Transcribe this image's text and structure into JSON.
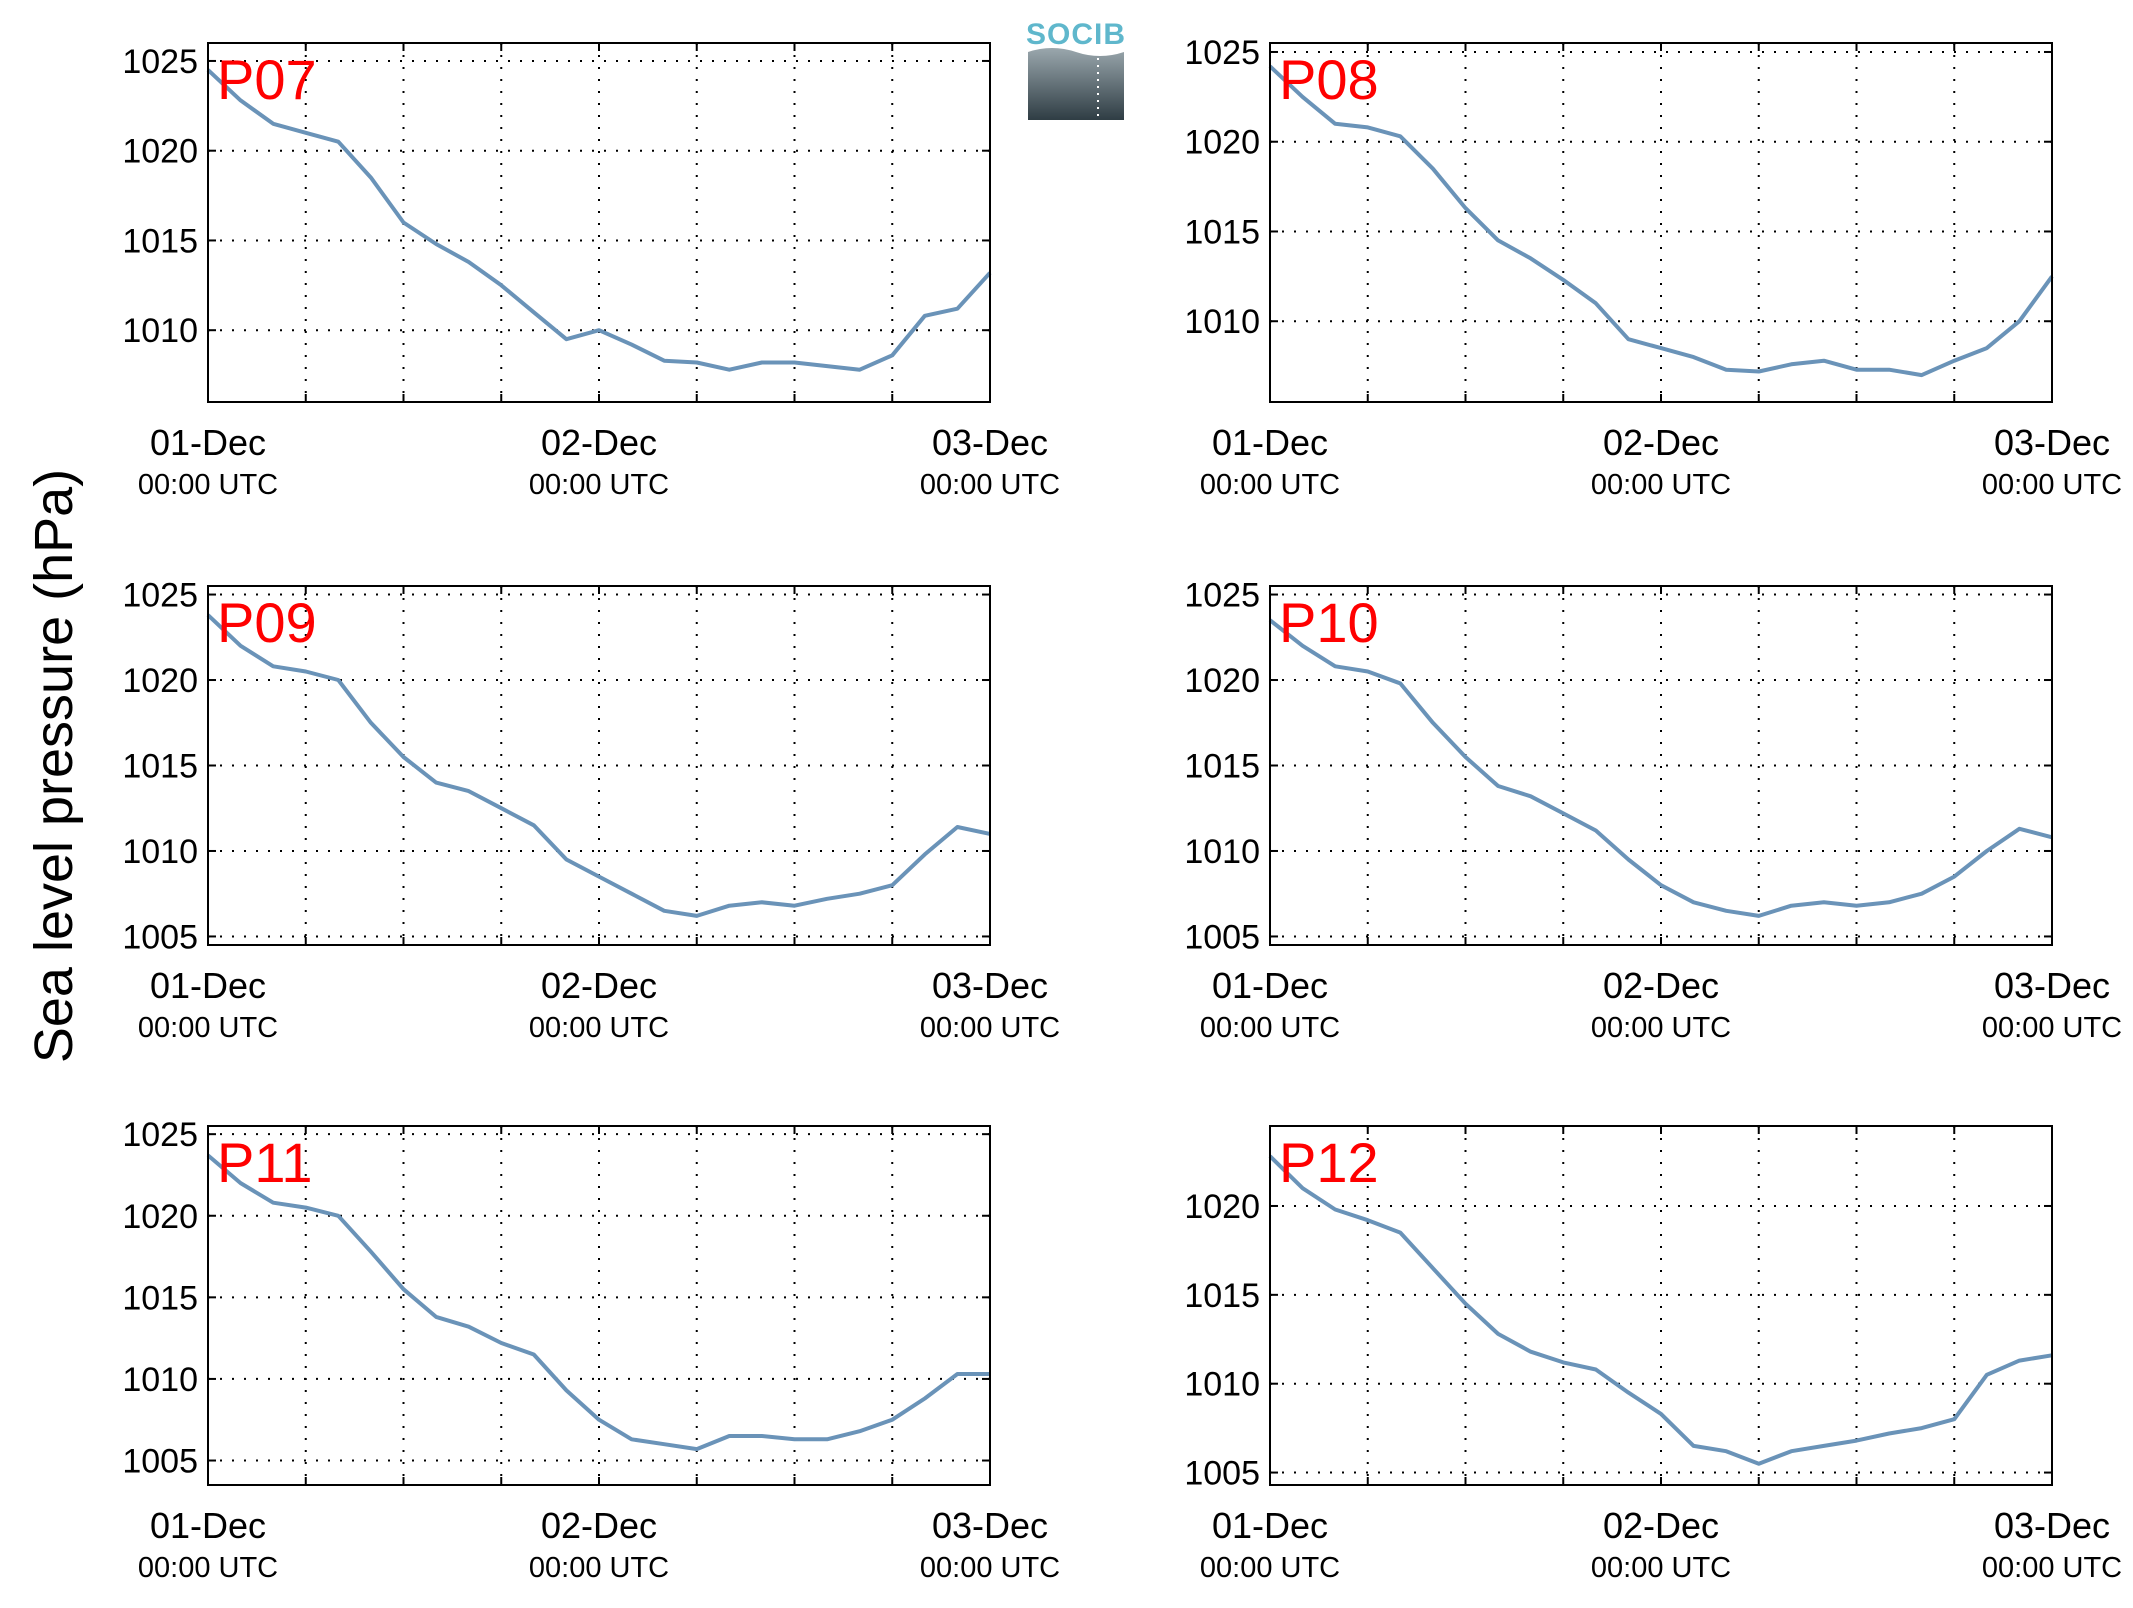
{
  "figure": {
    "ylabel": "Sea level pressure (hPa)",
    "logo_text": "SOCIB"
  },
  "colors": {
    "series_line": "#6a93b8",
    "station_label": "#ff0000",
    "logo_text": "#5fb7cc",
    "grid": "#000000"
  },
  "chart_data": [
    {
      "type": "line",
      "title": "P07",
      "grid": true,
      "xlim": [
        "2016-12-01 00:00",
        "2016-12-03 00:00"
      ],
      "ylim": [
        1006,
        1026
      ],
      "yticks": [
        1010,
        1015,
        1020,
        1025
      ],
      "xtick_labels": [
        {
          "date": "01-Dec",
          "time": "00:00 UTC"
        },
        {
          "date": "02-Dec",
          "time": "00:00 UTC"
        },
        {
          "date": "03-Dec",
          "time": "00:00 UTC"
        }
      ],
      "x_hours": [
        0,
        2,
        4,
        6,
        8,
        10,
        12,
        14,
        16,
        18,
        20,
        22,
        24,
        26,
        28,
        30,
        32,
        34,
        36,
        38,
        40,
        42,
        44,
        46,
        48
      ],
      "values": [
        1024.5,
        1022.8,
        1021.5,
        1021.0,
        1020.5,
        1018.5,
        1016.0,
        1014.8,
        1013.8,
        1012.5,
        1011.0,
        1009.5,
        1010.0,
        1009.2,
        1008.3,
        1008.2,
        1007.8,
        1008.2,
        1008.2,
        1008.0,
        1007.8,
        1008.6,
        1010.8,
        1011.2,
        1013.2
      ]
    },
    {
      "type": "line",
      "title": "P08",
      "grid": true,
      "xlim": [
        "2016-12-01 00:00",
        "2016-12-03 00:00"
      ],
      "ylim": [
        1005.5,
        1025.5
      ],
      "yticks": [
        1010,
        1015,
        1020,
        1025
      ],
      "xtick_labels": [
        {
          "date": "01-Dec",
          "time": "00:00 UTC"
        },
        {
          "date": "02-Dec",
          "time": "00:00 UTC"
        },
        {
          "date": "03-Dec",
          "time": "00:00 UTC"
        }
      ],
      "x_hours": [
        0,
        2,
        4,
        6,
        8,
        10,
        12,
        14,
        16,
        18,
        20,
        22,
        24,
        26,
        28,
        30,
        32,
        34,
        36,
        38,
        40,
        42,
        44,
        46,
        48
      ],
      "values": [
        1024.2,
        1022.5,
        1021.0,
        1020.8,
        1020.3,
        1018.5,
        1016.3,
        1014.5,
        1013.5,
        1012.3,
        1011.0,
        1009.0,
        1008.5,
        1008.0,
        1007.3,
        1007.2,
        1007.6,
        1007.8,
        1007.3,
        1007.3,
        1007.0,
        1007.8,
        1008.5,
        1010.0,
        1012.5
      ]
    },
    {
      "type": "line",
      "title": "P09",
      "grid": true,
      "xlim": [
        "2016-12-01 00:00",
        "2016-12-03 00:00"
      ],
      "ylim": [
        1004.5,
        1025.5
      ],
      "yticks": [
        1005,
        1010,
        1015,
        1020,
        1025
      ],
      "xtick_labels": [
        {
          "date": "01-Dec",
          "time": "00:00 UTC"
        },
        {
          "date": "02-Dec",
          "time": "00:00 UTC"
        },
        {
          "date": "03-Dec",
          "time": "00:00 UTC"
        }
      ],
      "x_hours": [
        0,
        2,
        4,
        6,
        8,
        10,
        12,
        14,
        16,
        18,
        20,
        22,
        24,
        26,
        28,
        30,
        32,
        34,
        36,
        38,
        40,
        42,
        44,
        46,
        48
      ],
      "values": [
        1023.8,
        1022.0,
        1020.8,
        1020.5,
        1020.0,
        1017.5,
        1015.5,
        1014.0,
        1013.5,
        1012.5,
        1011.5,
        1009.5,
        1008.5,
        1007.5,
        1006.5,
        1006.2,
        1006.8,
        1007.0,
        1006.8,
        1007.2,
        1007.5,
        1008.0,
        1009.8,
        1011.4,
        1011.0
      ]
    },
    {
      "type": "line",
      "title": "P10",
      "grid": true,
      "xlim": [
        "2016-12-01 00:00",
        "2016-12-03 00:00"
      ],
      "ylim": [
        1004.5,
        1025.5
      ],
      "yticks": [
        1005,
        1010,
        1015,
        1020,
        1025
      ],
      "xtick_labels": [
        {
          "date": "01-Dec",
          "time": "00:00 UTC"
        },
        {
          "date": "02-Dec",
          "time": "00:00 UTC"
        },
        {
          "date": "03-Dec",
          "time": "00:00 UTC"
        }
      ],
      "x_hours": [
        0,
        2,
        4,
        6,
        8,
        10,
        12,
        14,
        16,
        18,
        20,
        22,
        24,
        26,
        28,
        30,
        32,
        34,
        36,
        38,
        40,
        42,
        44,
        46,
        48
      ],
      "values": [
        1023.5,
        1022.0,
        1020.8,
        1020.5,
        1019.8,
        1017.5,
        1015.5,
        1013.8,
        1013.2,
        1012.2,
        1011.2,
        1009.5,
        1008.0,
        1007.0,
        1006.5,
        1006.2,
        1006.8,
        1007.0,
        1006.8,
        1007.0,
        1007.5,
        1008.5,
        1010.0,
        1011.3,
        1010.8
      ]
    },
    {
      "type": "line",
      "title": "P11",
      "grid": true,
      "xlim": [
        "2016-12-01 00:00",
        "2016-12-03 00:00"
      ],
      "ylim": [
        1003.5,
        1025.5
      ],
      "yticks": [
        1005,
        1010,
        1015,
        1020,
        1025
      ],
      "xtick_labels": [
        {
          "date": "01-Dec",
          "time": "00:00 UTC"
        },
        {
          "date": "02-Dec",
          "time": "00:00 UTC"
        },
        {
          "date": "03-Dec",
          "time": "00:00 UTC"
        }
      ],
      "x_hours": [
        0,
        2,
        4,
        6,
        8,
        10,
        12,
        14,
        16,
        18,
        20,
        22,
        24,
        26,
        28,
        30,
        32,
        34,
        36,
        38,
        40,
        42,
        44,
        46,
        48
      ],
      "values": [
        1023.7,
        1022.0,
        1020.8,
        1020.5,
        1020.0,
        1017.8,
        1015.5,
        1013.8,
        1013.2,
        1012.2,
        1011.5,
        1009.3,
        1007.5,
        1006.3,
        1006.0,
        1005.7,
        1006.5,
        1006.5,
        1006.3,
        1006.3,
        1006.8,
        1007.5,
        1008.8,
        1010.3,
        1010.3
      ]
    },
    {
      "type": "line",
      "title": "P12",
      "grid": true,
      "xlim": [
        "2016-12-01 00:00",
        "2016-12-03 00:00"
      ],
      "ylim": [
        1004.3,
        1024.5
      ],
      "yticks": [
        1005,
        1010,
        1015,
        1020
      ],
      "xtick_labels": [
        {
          "date": "01-Dec",
          "time": "00:00 UTC"
        },
        {
          "date": "02-Dec",
          "time": "00:00 UTC"
        },
        {
          "date": "03-Dec",
          "time": "00:00 UTC"
        }
      ],
      "x_hours": [
        0,
        2,
        4,
        6,
        8,
        10,
        12,
        14,
        16,
        18,
        20,
        22,
        24,
        26,
        28,
        30,
        32,
        34,
        36,
        38,
        40,
        42,
        44,
        46,
        48
      ],
      "values": [
        1022.8,
        1021.0,
        1019.8,
        1019.2,
        1018.5,
        1016.5,
        1014.5,
        1012.8,
        1011.8,
        1011.2,
        1010.8,
        1009.5,
        1008.3,
        1006.5,
        1006.2,
        1005.5,
        1006.2,
        1006.5,
        1006.8,
        1007.2,
        1007.5,
        1008.0,
        1010.5,
        1011.3,
        1011.6
      ]
    }
  ]
}
